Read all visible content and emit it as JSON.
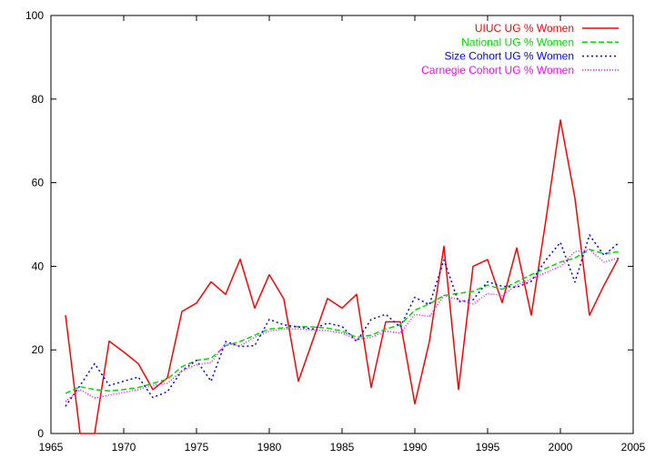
{
  "chart_data": {
    "type": "line",
    "title": "",
    "xlabel": "",
    "ylabel": "",
    "xlim": [
      1965,
      2005
    ],
    "ylim": [
      0,
      100
    ],
    "xticks": [
      1965,
      1970,
      1975,
      1980,
      1985,
      1990,
      1995,
      2000,
      2005
    ],
    "yticks": [
      0,
      20,
      40,
      60,
      80,
      100
    ],
    "grid": false,
    "legend_position": "top-right",
    "x": [
      1966,
      1967,
      1968,
      1969,
      1970,
      1971,
      1972,
      1973,
      1974,
      1975,
      1976,
      1977,
      1978,
      1979,
      1980,
      1981,
      1982,
      1983,
      1984,
      1985,
      1986,
      1987,
      1988,
      1989,
      1990,
      1991,
      1992,
      1993,
      1994,
      1995,
      1996,
      1997,
      1998,
      1999,
      2000,
      2001,
      2002,
      2003,
      2004
    ],
    "series": [
      {
        "name": "UIUC UG % Women",
        "color": "#ff0000",
        "dash": "solid",
        "values": [
          28.3,
          0,
          0,
          22.1,
          19.5,
          16.7,
          10.5,
          13.3,
          29.2,
          31.2,
          36.3,
          33.3,
          41.7,
          30.0,
          38.0,
          32.2,
          12.5,
          22.4,
          32.3,
          30.0,
          33.3,
          11.0,
          26.7,
          26.7,
          7.1,
          22.0,
          44.8,
          10.5,
          40.0,
          41.6,
          31.3,
          44.4,
          28.3,
          51.0,
          75.0,
          56.3,
          28.3,
          35.5,
          42.0
        ]
      },
      {
        "name": "National UG % Women",
        "color": "#00dd00",
        "dash": "dashed",
        "values": [
          9.6,
          11.2,
          10.5,
          10.2,
          10.5,
          11.0,
          12.0,
          13.0,
          16.0,
          17.5,
          18.0,
          21.0,
          22.0,
          23.5,
          25.0,
          25.3,
          25.6,
          25.5,
          25.2,
          24.5,
          23.0,
          23.5,
          25.0,
          26.0,
          29.5,
          31.0,
          33.0,
          33.5,
          34.0,
          35.5,
          34.5,
          36.3,
          38.0,
          39.5,
          41.0,
          42.0,
          44.0,
          43.0,
          43.5
        ]
      },
      {
        "name": "Size Cohort UG % Women",
        "color": "#0000ff",
        "dash": "dotted",
        "values": [
          6.5,
          11.5,
          16.7,
          11.5,
          12.5,
          13.5,
          8.6,
          10.0,
          15.0,
          17.5,
          12.5,
          22.0,
          20.8,
          21.0,
          27.3,
          26.0,
          25.5,
          25.0,
          26.4,
          25.6,
          22.0,
          27.3,
          28.5,
          25.5,
          32.6,
          30.8,
          41.5,
          31.5,
          32.0,
          36.3,
          35.2,
          35.0,
          36.4,
          41.5,
          45.7,
          36.2,
          47.5,
          42.6,
          45.6
        ]
      },
      {
        "name": "Carnegie Cohort UG % Women",
        "color": "#ff00ff",
        "dash": "finedot",
        "values": [
          7.7,
          10.5,
          8.5,
          9.2,
          9.8,
          10.5,
          11.5,
          12.0,
          15.0,
          16.5,
          17.0,
          21.5,
          21.0,
          23.0,
          24.5,
          25.0,
          25.0,
          24.8,
          24.6,
          24.0,
          22.5,
          23.0,
          24.5,
          24.0,
          28.5,
          28.0,
          33.0,
          32.0,
          31.0,
          33.5,
          33.0,
          35.5,
          37.0,
          38.5,
          40.0,
          43.5,
          44.0,
          41.0,
          42.0
        ]
      }
    ]
  }
}
